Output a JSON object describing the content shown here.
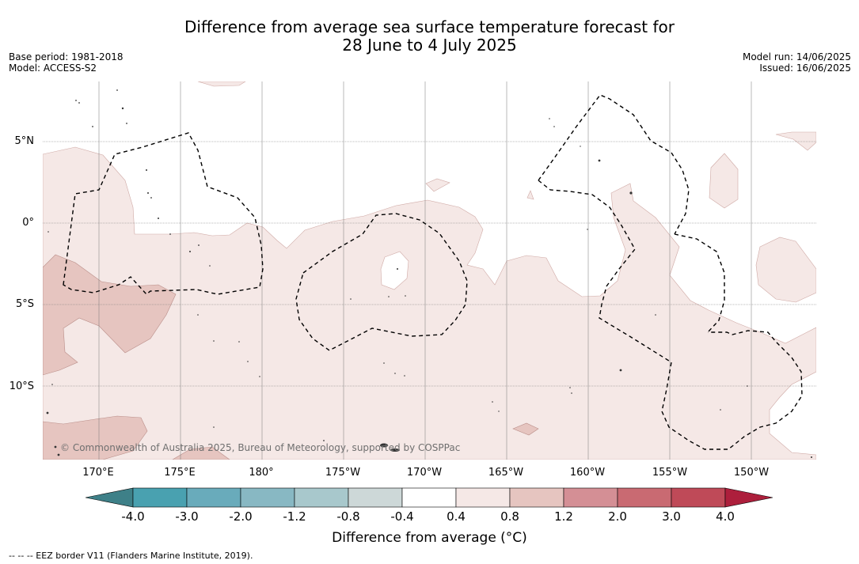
{
  "title": {
    "line1": "Difference from average sea surface temperature forecast for",
    "line2": "28 June to 4 July 2025"
  },
  "meta_left": {
    "base_period": "Base period: 1981-2018",
    "model": "Model: ACCESS-S2"
  },
  "meta_right": {
    "model_run": "Model run: 14/06/2025",
    "issued": "Issued: 16/06/2025"
  },
  "map": {
    "lat_labels": [
      "5°N",
      "0°",
      "5°S",
      "10°S"
    ],
    "lon_labels": [
      "170°E",
      "175°E",
      "180°",
      "175°W",
      "170°W",
      "165°W",
      "160°W",
      "155°W",
      "150°W"
    ],
    "credit": "© Commonwealth of Australia 2025, Bureau of Meteorology, supported by COSPPac",
    "colors": {
      "light_anomaly": "#f5e8e6",
      "mid_anomaly": "#e6c5c0",
      "border_line": "#000000"
    }
  },
  "colorbar": {
    "ticks": [
      "-4.0",
      "-3.0",
      "-2.0",
      "-1.2",
      "-0.8",
      "-0.4",
      "0.4",
      "0.8",
      "1.2",
      "2.0",
      "3.0",
      "4.0"
    ],
    "bins": [
      {
        "color": "#3e8088"
      },
      {
        "color": "#49a1b0"
      },
      {
        "color": "#69abbb"
      },
      {
        "color": "#88b8c3"
      },
      {
        "color": "#a8c8cc"
      },
      {
        "color": "#cdd8d8"
      },
      {
        "color": "#ffffff"
      },
      {
        "color": "#f5e8e6"
      },
      {
        "color": "#e6c5c0"
      },
      {
        "color": "#d48f95"
      },
      {
        "color": "#c96a72"
      },
      {
        "color": "#bf4a58"
      },
      {
        "color": "#ad1f3c"
      }
    ],
    "label": "Difference from average (°C)"
  },
  "footnote": "--  --  -- EEZ border V11 (Flanders Marine Institute, 2019)."
}
